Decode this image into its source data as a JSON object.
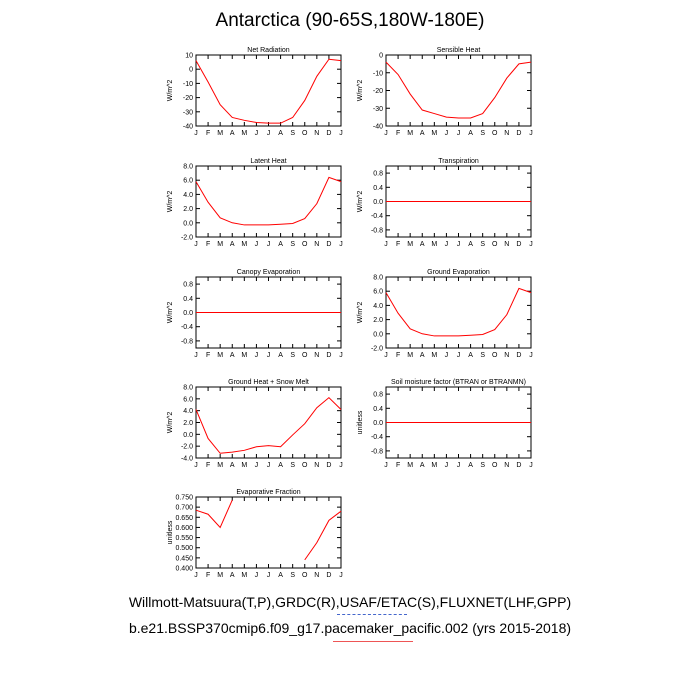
{
  "title": "Antarctica (90-65S,180W-180E)",
  "caption_line1": "Willmott-Matsuura(T,P),GRDC(R),USAF/ETAC(S),FLUXNET(LHF,GPP)",
  "caption_line2": "b.e21.BSSP370cmip6.f09_g17.pacemaker_pacific.002 (yrs 2015-2018)",
  "colors": {
    "series": "#ff0000",
    "axis": "#000000",
    "underline_blue": "#4466cc",
    "underline_red": "#ee5555"
  },
  "chart_data": [
    {
      "type": "line",
      "title": "Net Radiation",
      "ylabel": "W/m^2",
      "categories": [
        "J",
        "F",
        "M",
        "A",
        "M",
        "J",
        "J",
        "A",
        "S",
        "O",
        "N",
        "D",
        "J"
      ],
      "ylim": [
        -40,
        10
      ],
      "yticks": [
        "10",
        "0",
        "-10",
        "-20",
        "-30",
        "-40"
      ],
      "series": [
        {
          "values": [
            6,
            -9,
            -25,
            -34,
            -36,
            -37.5,
            -38,
            -38,
            -34,
            -22,
            -5,
            7,
            6
          ]
        }
      ]
    },
    {
      "type": "line",
      "title": "Sensible Heat",
      "ylabel": "W/m^2",
      "categories": [
        "J",
        "F",
        "M",
        "A",
        "M",
        "J",
        "J",
        "A",
        "S",
        "O",
        "N",
        "D",
        "J"
      ],
      "ylim": [
        -40,
        0
      ],
      "yticks": [
        "0",
        "-10",
        "-20",
        "-30",
        "-40"
      ],
      "series": [
        {
          "values": [
            -4,
            -11,
            -22,
            -31,
            -33,
            -35,
            -35.5,
            -35.5,
            -33,
            -24,
            -13,
            -5,
            -4
          ]
        }
      ]
    },
    {
      "type": "line",
      "title": "Latent Heat",
      "ylabel": "W/m^2",
      "categories": [
        "J",
        "F",
        "M",
        "A",
        "M",
        "J",
        "J",
        "A",
        "S",
        "O",
        "N",
        "D",
        "J"
      ],
      "ylim": [
        -2,
        8
      ],
      "yticks": [
        "8.0",
        "6.0",
        "4.0",
        "2.0",
        "0.0",
        "-2.0"
      ],
      "series": [
        {
          "values": [
            5.8,
            2.9,
            0.7,
            0.0,
            -0.3,
            -0.3,
            -0.3,
            -0.2,
            -0.1,
            0.6,
            2.7,
            6.4,
            5.8
          ]
        }
      ]
    },
    {
      "type": "line",
      "title": "Transpiration",
      "ylabel": "W/m^2",
      "categories": [
        "J",
        "F",
        "M",
        "A",
        "M",
        "J",
        "J",
        "A",
        "S",
        "O",
        "N",
        "D",
        "J"
      ],
      "ylim": [
        -1,
        1
      ],
      "yticks": [
        "0.8",
        "0.4",
        "0.0",
        "-0.4",
        "-0.8"
      ],
      "series": [
        {
          "values": [
            0,
            0,
            0,
            0,
            0,
            0,
            0,
            0,
            0,
            0,
            0,
            0,
            0
          ]
        }
      ]
    },
    {
      "type": "line",
      "title": "Canopy Evaporation",
      "ylabel": "W/m^2",
      "categories": [
        "J",
        "F",
        "M",
        "A",
        "M",
        "J",
        "J",
        "A",
        "S",
        "O",
        "N",
        "D",
        "J"
      ],
      "ylim": [
        -1,
        1
      ],
      "yticks": [
        "0.8",
        "0.4",
        "0.0",
        "-0.4",
        "-0.8"
      ],
      "series": [
        {
          "values": [
            0,
            0,
            0,
            0,
            0,
            0,
            0,
            0,
            0,
            0,
            0,
            0,
            0
          ]
        }
      ]
    },
    {
      "type": "line",
      "title": "Ground Evaporation",
      "ylabel": "W/m^2",
      "categories": [
        "J",
        "F",
        "M",
        "A",
        "M",
        "J",
        "J",
        "A",
        "S",
        "O",
        "N",
        "D",
        "J"
      ],
      "ylim": [
        -2,
        8
      ],
      "yticks": [
        "8.0",
        "6.0",
        "4.0",
        "2.0",
        "0.0",
        "-2.0"
      ],
      "series": [
        {
          "values": [
            5.8,
            2.9,
            0.7,
            0.0,
            -0.3,
            -0.3,
            -0.3,
            -0.2,
            -0.1,
            0.6,
            2.7,
            6.4,
            5.8
          ]
        }
      ]
    },
    {
      "type": "line",
      "title": "Ground Heat + Snow Melt",
      "ylabel": "W/m^2",
      "categories": [
        "J",
        "F",
        "M",
        "A",
        "M",
        "J",
        "J",
        "A",
        "S",
        "O",
        "N",
        "D",
        "J"
      ],
      "ylim": [
        -4,
        8
      ],
      "yticks": [
        "8.0",
        "6.0",
        "4.0",
        "2.0",
        "0.0",
        "-2.0",
        "-4.0"
      ],
      "series": [
        {
          "values": [
            4.2,
            -0.7,
            -3.2,
            -3.0,
            -2.7,
            -2.1,
            -1.9,
            -2.1,
            -0.1,
            1.8,
            4.5,
            6.2,
            4.2
          ]
        }
      ]
    },
    {
      "type": "line",
      "title": "Soil moisture factor (BTRAN or BTRANMN)",
      "ylabel": "unitless",
      "categories": [
        "J",
        "F",
        "M",
        "A",
        "M",
        "J",
        "J",
        "A",
        "S",
        "O",
        "N",
        "D",
        "J"
      ],
      "ylim": [
        -1,
        1
      ],
      "yticks": [
        "0.8",
        "0.4",
        "0.0",
        "-0.4",
        "-0.8"
      ],
      "series": [
        {
          "values": [
            0,
            0,
            0,
            0,
            0,
            0,
            0,
            0,
            0,
            0,
            0,
            0,
            0
          ]
        }
      ]
    },
    {
      "type": "line",
      "title": "Evaporative Fraction",
      "ylabel": "unitless",
      "categories": [
        "J",
        "F",
        "M",
        "A",
        "M",
        "J",
        "J",
        "A",
        "S",
        "O",
        "N",
        "D",
        "J"
      ],
      "ylim": [
        0.4,
        0.75
      ],
      "yticks": [
        "0.750",
        "0.700",
        "0.650",
        "0.600",
        "0.550",
        "0.500",
        "0.450",
        "0.400"
      ],
      "series": [
        {
          "values": [
            0.685,
            0.665,
            0.6,
            0.735,
            null,
            null,
            null,
            null,
            null,
            0.44,
            0.525,
            0.635,
            0.68
          ]
        }
      ]
    }
  ]
}
